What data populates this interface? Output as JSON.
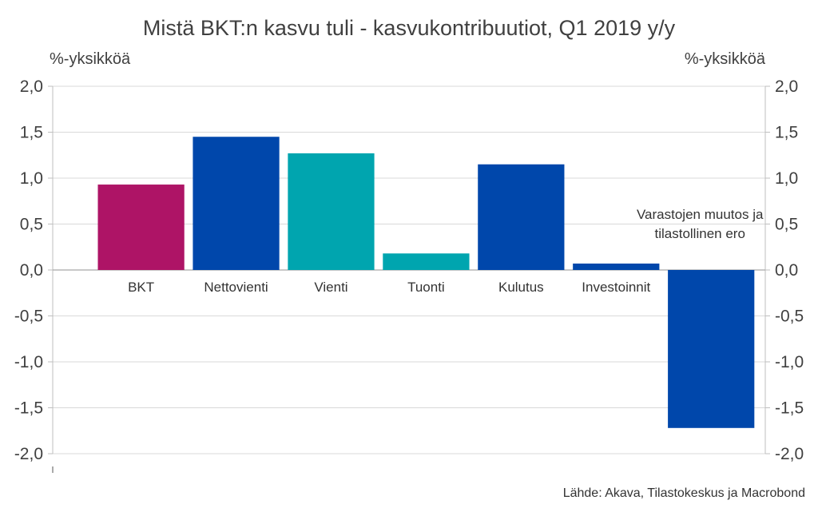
{
  "chart_data": {
    "type": "bar",
    "title": "Mistä BKT:n kasvu tuli - kasvukontribuutiot, Q1 2019 y/y",
    "ylabel_left": "%-yksikköä",
    "ylabel_right": "%-yksikköä",
    "ylim": [
      -2.0,
      2.0
    ],
    "yticks": [
      "2,0",
      "1,5",
      "1,0",
      "0,5",
      "0,0",
      "-0,5",
      "-1,0",
      "-1,5",
      "-2,0"
    ],
    "ytick_values": [
      2.0,
      1.5,
      1.0,
      0.5,
      0.0,
      -0.5,
      -1.0,
      -1.5,
      -2.0
    ],
    "grid": true,
    "categories": [
      "BKT",
      "Nettovienti",
      "Vienti",
      "Tuonti",
      "Kulutus",
      "Investoinnit",
      "Varastojen muutos ja tilastollinen ero"
    ],
    "category_label_lines": [
      [
        "BKT"
      ],
      [
        "Nettovienti"
      ],
      [
        "Vienti"
      ],
      [
        "Tuonti"
      ],
      [
        "Kulutus"
      ],
      [
        "Investoinnit"
      ],
      [
        "Varastojen muutos ja",
        "tilastollinen ero"
      ]
    ],
    "values": [
      0.93,
      1.45,
      1.27,
      0.18,
      1.15,
      0.07,
      -1.72
    ],
    "colors": [
      "#AE1466",
      "#0047AB",
      "#00A5AF",
      "#00A5AF",
      "#0047AB",
      "#0047AB",
      "#0047AB"
    ],
    "source": "Lähde: Akava, Tilastokeskus ja Macrobond"
  }
}
